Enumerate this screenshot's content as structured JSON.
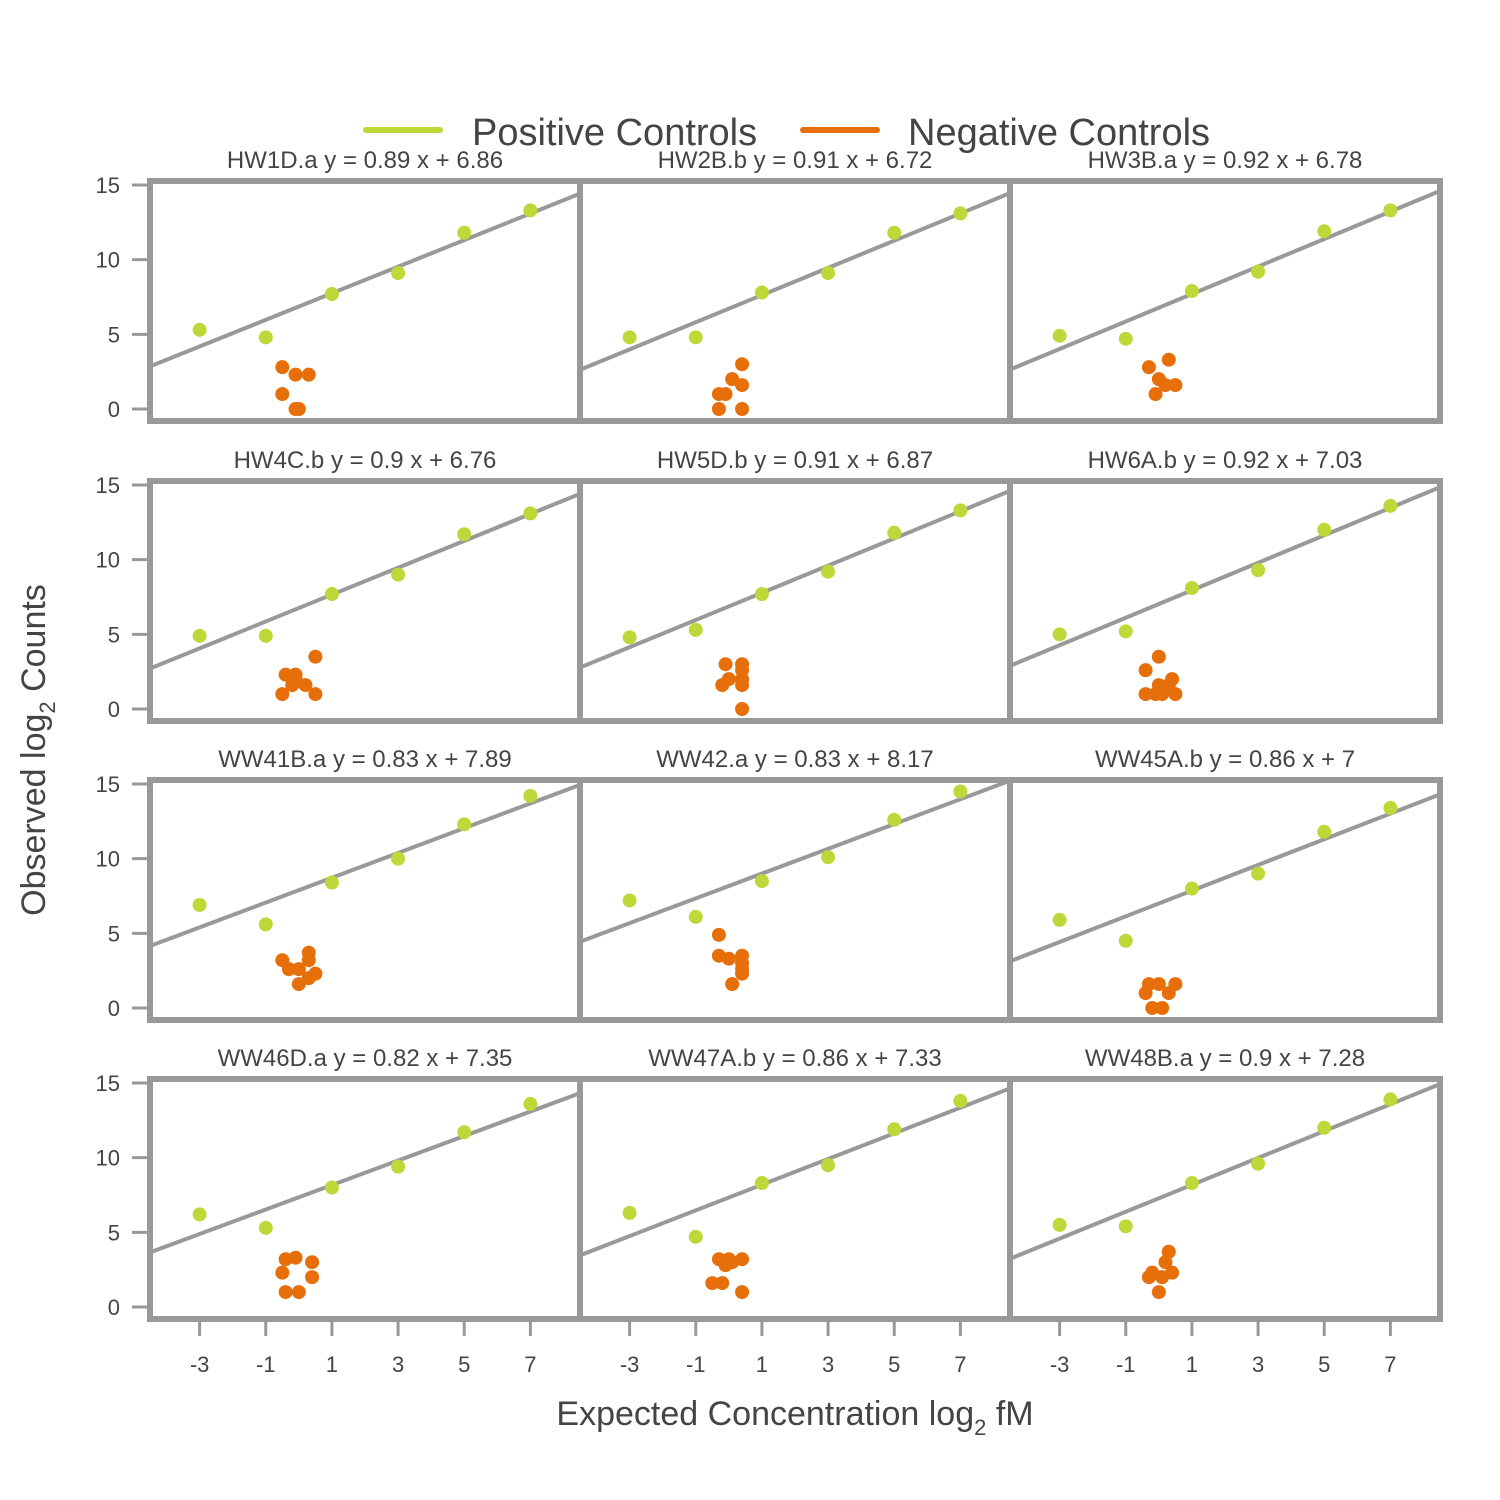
{
  "legend": {
    "items": [
      {
        "label": "Positive Controls",
        "color": "#bfd738"
      },
      {
        "label": "Negative Controls",
        "color": "#e66f0a"
      }
    ]
  },
  "axes": {
    "xlabel": "Expected Concentration log",
    "xlabel_sub": "2",
    "xlabel_suffix": " fM",
    "ylabel": "Observed log",
    "ylabel_sub": "2",
    "ylabel_suffix": " Counts"
  },
  "colors": {
    "frame": "#999999",
    "fit_line": "#999999",
    "positive": "#bfd738",
    "negative": "#e66f0a",
    "text": "#444444"
  },
  "chart_data": {
    "type": "scatter",
    "layout": "4x3 facet grid",
    "xlim": [
      -4.5,
      8.5
    ],
    "ylim": [
      0,
      15
    ],
    "xticks": [
      -3,
      -1,
      1,
      3,
      5,
      7
    ],
    "xtick_labels": [
      "-3",
      "-1",
      "1",
      "3",
      "5",
      "7"
    ],
    "yticks": [
      0,
      5,
      10,
      15
    ],
    "ytick_labels": [
      "0",
      "5",
      "10",
      "15"
    ],
    "xlabel": "Expected Concentration log2 fM",
    "ylabel": "Observed log2 Counts",
    "legend_position": "top",
    "panels": [
      {
        "title": "HW1D.a y = 0.89 x + 6.86",
        "slope": 0.89,
        "intercept": 6.86,
        "positive": [
          [
            -3,
            5.3
          ],
          [
            -1,
            4.8
          ],
          [
            1,
            7.7
          ],
          [
            3,
            9.1
          ],
          [
            5,
            11.8
          ],
          [
            7,
            13.3
          ]
        ],
        "negative": [
          [
            -0.5,
            2.8
          ],
          [
            -0.5,
            1.0
          ],
          [
            -0.1,
            2.3
          ],
          [
            0.3,
            2.3
          ],
          [
            -0.1,
            0.0
          ],
          [
            0.0,
            0.0
          ]
        ]
      },
      {
        "title": "HW2B.b y = 0.91 x + 6.72",
        "slope": 0.91,
        "intercept": 6.72,
        "positive": [
          [
            -3,
            4.8
          ],
          [
            -1,
            4.8
          ],
          [
            1,
            7.8
          ],
          [
            3,
            9.1
          ],
          [
            5,
            11.8
          ],
          [
            7,
            13.1
          ]
        ],
        "negative": [
          [
            -0.3,
            1.0
          ],
          [
            -0.1,
            1.0
          ],
          [
            0.1,
            2.0
          ],
          [
            0.4,
            3.0
          ],
          [
            0.4,
            1.6
          ],
          [
            -0.3,
            0.0
          ],
          [
            0.4,
            0.0
          ]
        ]
      },
      {
        "title": "HW3B.a y = 0.92 x + 6.78",
        "slope": 0.92,
        "intercept": 6.78,
        "positive": [
          [
            -3,
            4.9
          ],
          [
            -1,
            4.7
          ],
          [
            1,
            7.9
          ],
          [
            3,
            9.2
          ],
          [
            5,
            11.9
          ],
          [
            7,
            13.3
          ]
        ],
        "negative": [
          [
            -0.3,
            2.8
          ],
          [
            0.0,
            2.0
          ],
          [
            0.3,
            3.3
          ],
          [
            0.2,
            1.6
          ],
          [
            0.5,
            1.6
          ],
          [
            -0.1,
            1.0
          ]
        ]
      },
      {
        "title": "HW4C.b y = 0.9 x + 6.76",
        "slope": 0.9,
        "intercept": 6.76,
        "positive": [
          [
            -3,
            4.9
          ],
          [
            -1,
            4.9
          ],
          [
            1,
            7.7
          ],
          [
            3,
            9.0
          ],
          [
            5,
            11.7
          ],
          [
            7,
            13.1
          ]
        ],
        "negative": [
          [
            -0.4,
            2.3
          ],
          [
            -0.1,
            2.3
          ],
          [
            0.5,
            3.5
          ],
          [
            -0.2,
            1.6
          ],
          [
            0.2,
            1.6
          ],
          [
            -0.5,
            1.0
          ],
          [
            0.5,
            1.0
          ],
          [
            -0.1,
            2.0
          ]
        ]
      },
      {
        "title": "HW5D.b y = 0.91 x + 6.87",
        "slope": 0.91,
        "intercept": 6.87,
        "positive": [
          [
            -3,
            4.8
          ],
          [
            -1,
            5.3
          ],
          [
            1,
            7.7
          ],
          [
            3,
            9.2
          ],
          [
            5,
            11.8
          ],
          [
            7,
            13.3
          ]
        ],
        "negative": [
          [
            -0.1,
            3.0
          ],
          [
            0.4,
            3.0
          ],
          [
            0.4,
            2.6
          ],
          [
            0.0,
            2.0
          ],
          [
            -0.2,
            1.6
          ],
          [
            0.4,
            1.6
          ],
          [
            0.4,
            2.0
          ],
          [
            0.4,
            0.0
          ]
        ]
      },
      {
        "title": "HW6A.b y = 0.92 x + 7.03",
        "slope": 0.92,
        "intercept": 7.03,
        "positive": [
          [
            -3,
            5.0
          ],
          [
            -1,
            5.2
          ],
          [
            1,
            8.1
          ],
          [
            3,
            9.3
          ],
          [
            5,
            12.0
          ],
          [
            7,
            13.6
          ]
        ],
        "negative": [
          [
            -0.4,
            2.6
          ],
          [
            0.0,
            3.5
          ],
          [
            0.0,
            1.6
          ],
          [
            0.3,
            1.6
          ],
          [
            0.4,
            2.0
          ],
          [
            -0.4,
            1.0
          ],
          [
            -0.1,
            1.0
          ],
          [
            0.1,
            1.0
          ],
          [
            0.5,
            1.0
          ]
        ]
      },
      {
        "title": "WW41B.a y = 0.83 x + 7.89",
        "slope": 0.83,
        "intercept": 7.89,
        "positive": [
          [
            -3,
            6.9
          ],
          [
            -1,
            5.6
          ],
          [
            1,
            8.4
          ],
          [
            3,
            10.0
          ],
          [
            5,
            12.3
          ],
          [
            7,
            14.2
          ]
        ],
        "negative": [
          [
            -0.5,
            3.2
          ],
          [
            -0.3,
            2.6
          ],
          [
            0.3,
            3.7
          ],
          [
            0.3,
            3.2
          ],
          [
            0.0,
            2.6
          ],
          [
            0.3,
            2.0
          ],
          [
            0.5,
            2.3
          ],
          [
            0.0,
            1.6
          ]
        ]
      },
      {
        "title": "WW42.a y = 0.83 x + 8.17",
        "slope": 0.83,
        "intercept": 8.17,
        "positive": [
          [
            -3,
            7.2
          ],
          [
            -1,
            6.1
          ],
          [
            1,
            8.5
          ],
          [
            3,
            10.1
          ],
          [
            5,
            12.6
          ],
          [
            7,
            14.5
          ]
        ],
        "negative": [
          [
            -0.3,
            4.9
          ],
          [
            -0.3,
            3.5
          ],
          [
            0.0,
            3.3
          ],
          [
            0.4,
            3.5
          ],
          [
            0.4,
            3.0
          ],
          [
            0.4,
            2.6
          ],
          [
            0.4,
            2.3
          ],
          [
            0.1,
            1.6
          ]
        ]
      },
      {
        "title": "WW45A.b y = 0.86 x + 7",
        "slope": 0.86,
        "intercept": 7.0,
        "positive": [
          [
            -3,
            5.9
          ],
          [
            -1,
            4.5
          ],
          [
            1,
            8.0
          ],
          [
            3,
            9.0
          ],
          [
            5,
            11.8
          ],
          [
            7,
            13.4
          ]
        ],
        "negative": [
          [
            -0.3,
            1.6
          ],
          [
            0.0,
            1.6
          ],
          [
            0.5,
            1.6
          ],
          [
            -0.4,
            1.0
          ],
          [
            0.3,
            1.0
          ],
          [
            -0.2,
            0.0
          ],
          [
            0.1,
            0.0
          ]
        ]
      },
      {
        "title": "WW46D.a y = 0.82 x + 7.35",
        "slope": 0.82,
        "intercept": 7.35,
        "positive": [
          [
            -3,
            6.2
          ],
          [
            -1,
            5.3
          ],
          [
            1,
            8.0
          ],
          [
            3,
            9.4
          ],
          [
            5,
            11.7
          ],
          [
            7,
            13.6
          ]
        ],
        "negative": [
          [
            -0.4,
            3.2
          ],
          [
            -0.1,
            3.3
          ],
          [
            0.4,
            3.0
          ],
          [
            -0.5,
            2.3
          ],
          [
            0.4,
            2.0
          ],
          [
            -0.4,
            1.0
          ],
          [
            0.0,
            1.0
          ]
        ]
      },
      {
        "title": "WW47A.b y = 0.86 x + 7.33",
        "slope": 0.86,
        "intercept": 7.33,
        "positive": [
          [
            -3,
            6.3
          ],
          [
            -1,
            4.7
          ],
          [
            1,
            8.3
          ],
          [
            3,
            9.5
          ],
          [
            5,
            11.9
          ],
          [
            7,
            13.8
          ]
        ],
        "negative": [
          [
            -0.3,
            3.2
          ],
          [
            0.0,
            3.2
          ],
          [
            0.4,
            3.2
          ],
          [
            0.1,
            3.0
          ],
          [
            -0.1,
            2.8
          ],
          [
            -0.5,
            1.6
          ],
          [
            -0.2,
            1.6
          ],
          [
            0.4,
            1.0
          ]
        ]
      },
      {
        "title": "WW48B.a y = 0.9 x + 7.28",
        "slope": 0.9,
        "intercept": 7.28,
        "positive": [
          [
            -3,
            5.5
          ],
          [
            -1,
            5.4
          ],
          [
            1,
            8.3
          ],
          [
            3,
            9.6
          ],
          [
            5,
            12.0
          ],
          [
            7,
            13.9
          ]
        ],
        "negative": [
          [
            0.3,
            3.7
          ],
          [
            0.2,
            3.0
          ],
          [
            -0.2,
            2.3
          ],
          [
            0.1,
            2.0
          ],
          [
            0.4,
            2.3
          ],
          [
            -0.3,
            2.0
          ],
          [
            0.0,
            1.0
          ]
        ]
      }
    ]
  }
}
